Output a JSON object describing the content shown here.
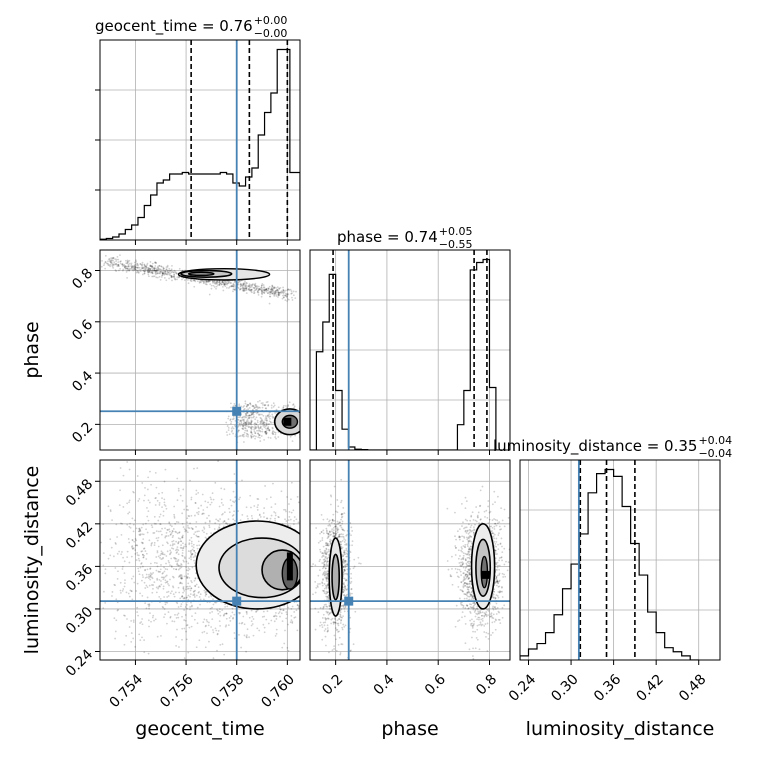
{
  "chart_data": {
    "type": "corner",
    "parameters": [
      "geocent_time",
      "phase",
      "luminosity_distance"
    ],
    "truths": {
      "geocent_time": 0.758,
      "phase": 0.251,
      "luminosity_distance": 0.311
    },
    "ranges": {
      "geocent_time": [
        0.7526,
        0.7605
      ],
      "phase": [
        0.1,
        0.88
      ],
      "luminosity_distance": [
        0.228,
        0.51
      ]
    },
    "ticks": {
      "geocent_time": [
        "0.754",
        "0.756",
        "0.758",
        "0.760"
      ],
      "phase": [
        "0.2",
        "0.4",
        "0.6",
        "0.8"
      ],
      "luminosity_distance": [
        "0.24",
        "0.30",
        "0.36",
        "0.42",
        "0.48"
      ]
    },
    "titles": [
      {
        "param": "geocent_time",
        "label": "geocent_time = 0.76",
        "sup": "+0.00",
        "sub": "−0.00"
      },
      {
        "param": "phase",
        "label": "phase = 0.74",
        "sup": "+0.05",
        "sub": "−0.55"
      },
      {
        "param": "luminosity_distance",
        "label": "luminosity_distance = 0.35",
        "sup": "+0.04",
        "sub": "−0.04"
      }
    ],
    "quantiles": {
      "geocent_time": [
        0.7562,
        0.7585,
        0.76
      ],
      "phase": [
        0.19,
        0.74,
        0.79
      ],
      "luminosity_distance": [
        0.313,
        0.35,
        0.39
      ]
    },
    "histograms": {
      "geocent_time": {
        "edges": [
          0.7526,
          0.75285,
          0.7531,
          0.75335,
          0.7536,
          0.75385,
          0.7541,
          0.75435,
          0.7546,
          0.75485,
          0.7551,
          0.75535,
          0.7556,
          0.75585,
          0.7561,
          0.75635,
          0.7566,
          0.75685,
          0.7571,
          0.75735,
          0.7576,
          0.75785,
          0.7581,
          0.75835,
          0.7586,
          0.75885,
          0.7591,
          0.75935,
          0.7596,
          0.75985,
          0.7601,
          0.7605
        ],
        "counts": [
          0.5,
          1,
          2,
          4,
          7,
          10,
          15,
          23,
          30,
          38,
          40,
          44,
          44,
          45,
          44,
          44,
          44,
          44,
          44,
          45,
          44,
          38,
          36,
          42,
          48,
          70,
          85,
          98,
          127,
          127,
          45
        ]
      },
      "phase": {
        "edges": [
          0.1,
          0.125,
          0.15,
          0.175,
          0.2,
          0.225,
          0.25,
          0.275,
          0.3,
          0.325,
          0.35,
          0.675,
          0.7,
          0.725,
          0.75,
          0.775,
          0.8,
          0.825,
          0.85
        ],
        "counts": [
          0,
          66,
          86,
          118,
          40,
          14,
          2,
          0.5,
          0.3,
          0,
          0,
          17,
          40,
          121,
          126,
          128,
          42,
          0
        ]
      },
      "luminosity_distance": {
        "edges": [
          0.228,
          0.24,
          0.252,
          0.264,
          0.276,
          0.288,
          0.3,
          0.312,
          0.324,
          0.336,
          0.348,
          0.36,
          0.372,
          0.384,
          0.396,
          0.408,
          0.42,
          0.432,
          0.444,
          0.456,
          0.468,
          0.48
        ],
        "counts": [
          3,
          8,
          12,
          20,
          33,
          52,
          70,
          92,
          122,
          136,
          139,
          134,
          112,
          85,
          62,
          35,
          20,
          9,
          6,
          3,
          0
        ]
      }
    }
  }
}
